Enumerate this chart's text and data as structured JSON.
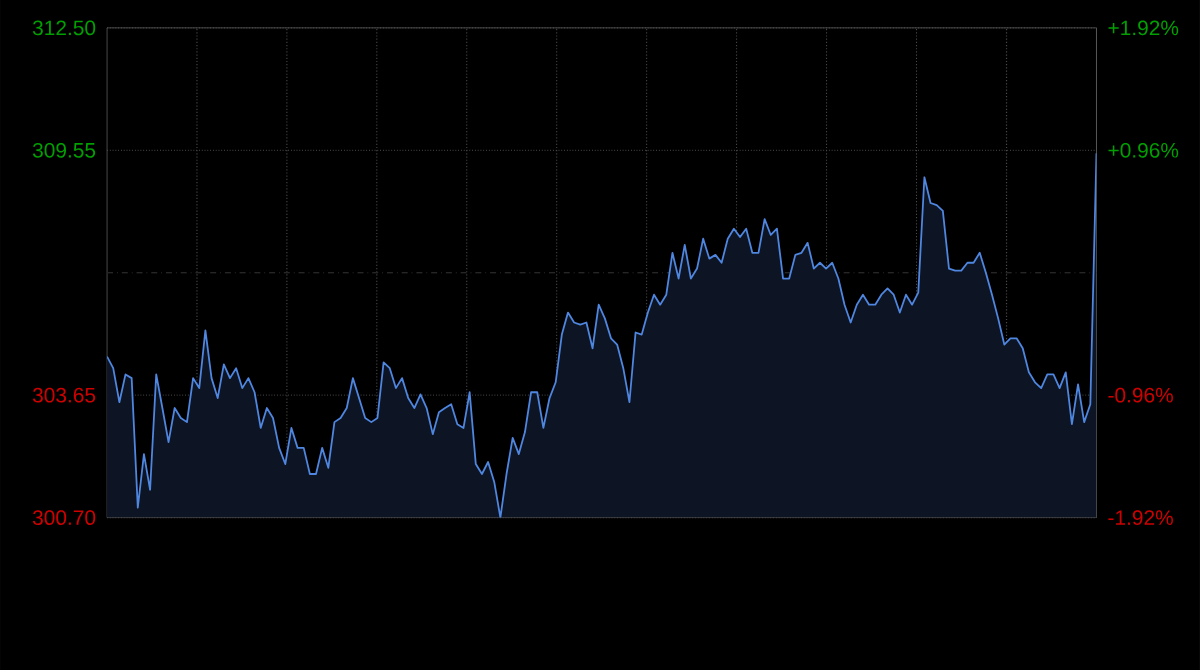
{
  "chart_data": {
    "type": "area",
    "color": "#4f86e0",
    "grid": true,
    "categories": [
      null,
      null,
      null,
      null,
      null,
      null,
      null,
      null,
      null,
      null,
      null,
      null,
      null,
      null,
      null,
      null,
      null,
      null,
      null,
      null,
      null,
      null,
      null,
      null,
      null,
      null,
      null,
      null,
      null,
      null,
      null,
      null,
      null,
      null,
      null,
      null,
      null,
      null,
      null,
      null,
      null,
      null,
      null,
      null,
      null,
      null,
      null,
      null,
      null,
      null,
      null,
      null,
      null,
      null,
      null,
      null,
      null,
      null,
      null,
      null,
      null,
      null,
      null,
      null,
      null,
      null,
      null,
      null,
      null,
      null,
      null,
      null,
      null,
      null,
      null,
      null,
      null,
      null,
      null,
      null,
      null,
      null,
      null,
      null,
      null,
      null,
      null,
      null,
      null,
      null,
      null,
      null,
      null,
      null,
      null,
      null,
      null,
      null,
      null,
      null,
      null,
      null,
      null,
      null,
      null,
      null,
      null,
      null,
      null,
      null,
      null,
      null,
      null,
      null,
      null,
      null,
      null,
      null,
      null,
      null,
      null,
      null,
      null,
      null,
      null,
      null,
      null,
      null,
      null,
      null,
      null,
      null,
      null,
      null,
      null,
      null,
      null,
      null,
      null,
      null,
      null,
      null,
      null,
      null,
      null,
      null,
      null,
      null,
      null,
      null,
      null,
      null,
      null,
      null,
      null,
      null,
      null,
      null,
      null,
      null,
      null,
      null
    ],
    "values": [
      304.58,
      304.3,
      303.48,
      304.15,
      304.06,
      300.94,
      302.23,
      301.37,
      304.15,
      303.34,
      302.52,
      303.34,
      303.1,
      303.0,
      304.06,
      303.82,
      305.21,
      304.06,
      303.58,
      304.39,
      304.06,
      304.3,
      303.82,
      304.06,
      303.72,
      302.86,
      303.34,
      303.1,
      302.38,
      301.99,
      302.86,
      302.38,
      302.38,
      301.75,
      301.75,
      302.38,
      301.9,
      303.0,
      303.1,
      303.34,
      304.06,
      303.58,
      303.1,
      303.0,
      303.1,
      304.44,
      304.3,
      303.82,
      304.06,
      303.58,
      303.34,
      303.67,
      303.34,
      302.71,
      303.24,
      303.34,
      303.43,
      302.95,
      302.86,
      303.72,
      301.99,
      301.75,
      302.04,
      301.56,
      300.7,
      301.75,
      302.62,
      302.23,
      302.76,
      303.72,
      303.72,
      302.86,
      303.58,
      303.96,
      305.11,
      305.64,
      305.4,
      305.35,
      305.4,
      304.78,
      305.83,
      305.5,
      305.02,
      304.87,
      304.3,
      303.48,
      305.16,
      305.11,
      305.64,
      306.07,
      305.83,
      306.07,
      307.08,
      306.46,
      307.27,
      306.46,
      306.7,
      307.42,
      306.94,
      307.03,
      306.84,
      307.42,
      307.66,
      307.46,
      307.66,
      307.08,
      307.08,
      307.89,
      307.51,
      307.66,
      306.46,
      306.46,
      307.03,
      307.08,
      307.32,
      306.7,
      306.84,
      306.7,
      306.84,
      306.46,
      305.83,
      305.4,
      305.83,
      306.07,
      305.83,
      305.83,
      306.07,
      306.22,
      306.07,
      305.64,
      306.07,
      305.83,
      306.12,
      308.9,
      308.28,
      308.23,
      308.09,
      306.7,
      306.65,
      306.65,
      306.84,
      306.84,
      307.08,
      306.6,
      306.07,
      305.5,
      304.87,
      305.02,
      305.02,
      304.78,
      304.2,
      303.96,
      303.82,
      304.15,
      304.15,
      303.82,
      304.2,
      302.95,
      303.91,
      303.0,
      303.43,
      309.48
    ],
    "ylim": [
      300.7,
      312.5
    ],
    "yticks": [
      {
        "value": 300.7,
        "label": "300.70"
      },
      {
        "value": 303.65,
        "label": "303.65"
      },
      {
        "value": 309.55,
        "label": "309.55"
      },
      {
        "value": 312.5,
        "label": "312.50"
      }
    ],
    "y2lim": [
      -1.92,
      1.92
    ],
    "y2ticks": [
      {
        "value": -1.92,
        "label": "-1.92%"
      },
      {
        "value": -0.96,
        "label": "-0.96%"
      },
      {
        "value": 0.96,
        "label": "+0.96%"
      },
      {
        "value": 1.92,
        "label": "+1.92%"
      }
    ],
    "ref_lines": [
      {
        "axis": "y",
        "value": 306.6
      }
    ]
  }
}
